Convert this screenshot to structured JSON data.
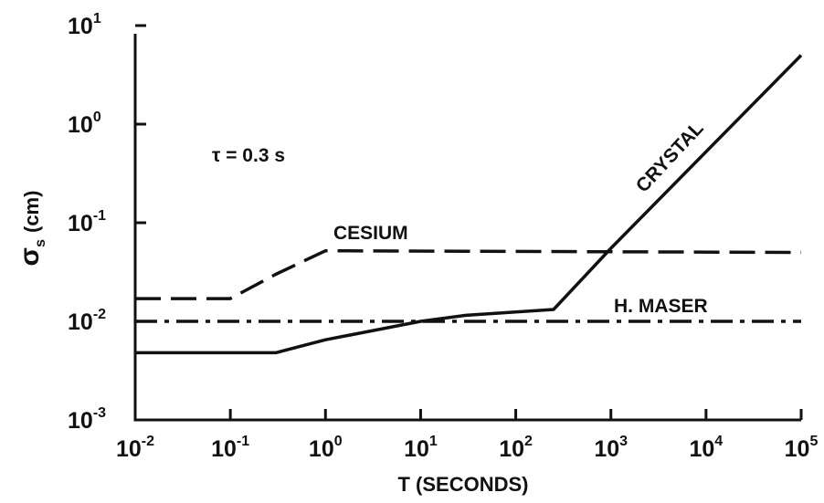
{
  "chart_data": {
    "type": "line",
    "xlabel": "T (SECONDS)",
    "ylabel_main": "σ",
    "ylabel_sub": "s",
    "ylabel_unit": "(cm)",
    "x_scale": "log",
    "y_scale": "log",
    "xlim": [
      0.01,
      100000
    ],
    "ylim": [
      0.001,
      10
    ],
    "x_ticks": [
      {
        "base": "10",
        "exp": "-2",
        "value": 0.01
      },
      {
        "base": "10",
        "exp": "-1",
        "value": 0.1
      },
      {
        "base": "10",
        "exp": "0",
        "value": 1
      },
      {
        "base": "10",
        "exp": "1",
        "value": 10
      },
      {
        "base": "10",
        "exp": "2",
        "value": 100
      },
      {
        "base": "10",
        "exp": "3",
        "value": 1000
      },
      {
        "base": "10",
        "exp": "4",
        "value": 10000
      },
      {
        "base": "10",
        "exp": "5",
        "value": 100000
      }
    ],
    "y_ticks": [
      {
        "base": "10",
        "exp": "-3",
        "value": 0.001
      },
      {
        "base": "10",
        "exp": "-2",
        "value": 0.01
      },
      {
        "base": "10",
        "exp": "-1",
        "value": 0.1
      },
      {
        "base": "10",
        "exp": "0",
        "value": 1
      },
      {
        "base": "10",
        "exp": "1",
        "value": 10
      }
    ],
    "grid": false,
    "annotation": "τ = 0.3 s",
    "series": [
      {
        "name": "CESIUM",
        "style": "dashed",
        "x": [
          0.01,
          0.1,
          0.3,
          1,
          100000
        ],
        "y": [
          0.017,
          0.017,
          0.03,
          0.052,
          0.05
        ]
      },
      {
        "name": "H. MASER",
        "style": "dash-dot",
        "x": [
          0.01,
          100000
        ],
        "y": [
          0.01,
          0.01
        ]
      },
      {
        "name": "CRYSTAL",
        "style": "solid",
        "x": [
          0.01,
          0.3,
          1,
          10,
          30,
          250,
          1000,
          100000
        ],
        "y": [
          0.0048,
          0.0048,
          0.0065,
          0.01,
          0.0115,
          0.0132,
          0.055,
          5
        ]
      }
    ]
  }
}
